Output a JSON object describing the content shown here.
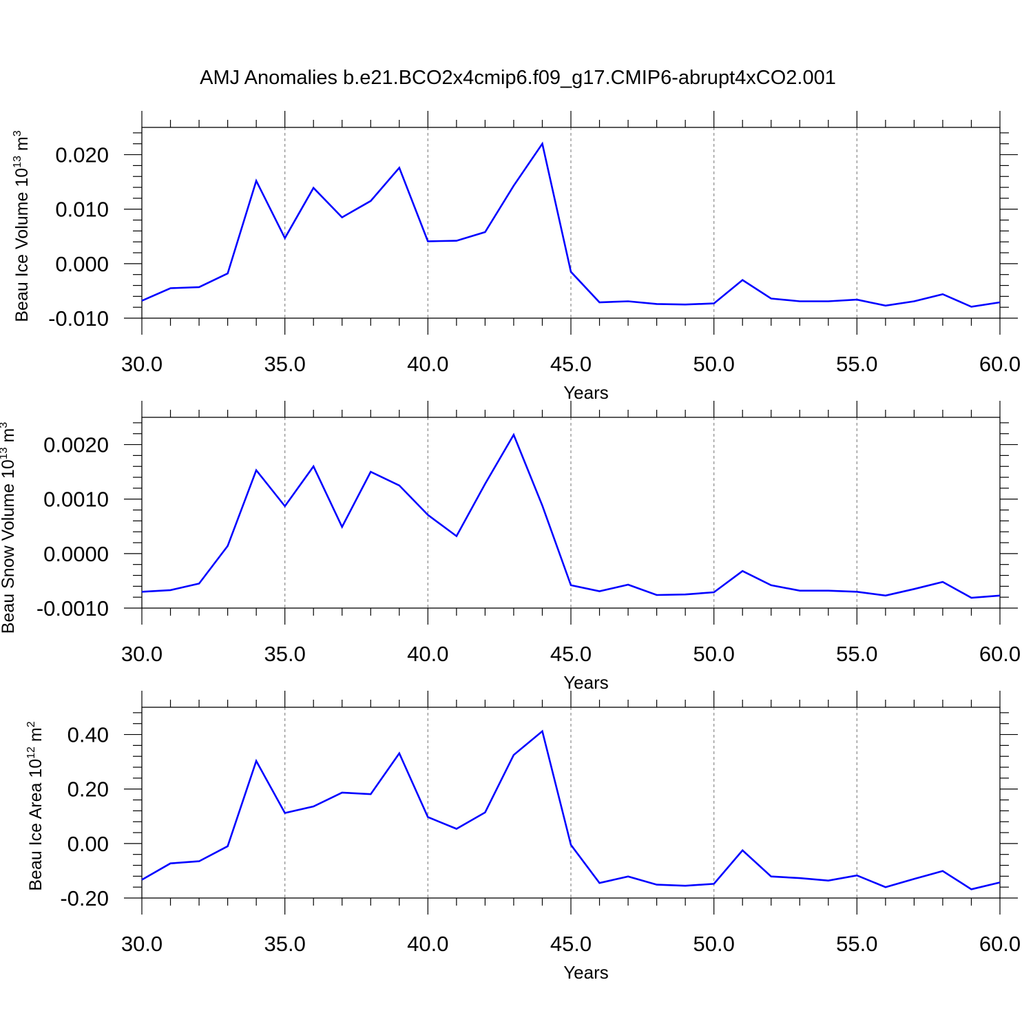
{
  "title": "AMJ Anomalies b.e21.BCO2x4cmip6.f09_g17.CMIP6-abrupt4xCO2.001",
  "colors": {
    "series": "#0000ff",
    "grid": "#888888",
    "axis": "#000000"
  },
  "chart_data": [
    {
      "type": "line",
      "ylabel_base": "Beau Ice Volume 10",
      "ylabel_exp": "13",
      "ylabel_unit": " m",
      "ylabel_unit_exp": "3",
      "xlabel": "Years",
      "xlim": [
        30,
        60
      ],
      "ylim": [
        -0.01,
        0.025
      ],
      "xticks": [
        30,
        35,
        40,
        45,
        50,
        55,
        60
      ],
      "xtick_labels": [
        "30.0",
        "35.0",
        "40.0",
        "45.0",
        "50.0",
        "55.0",
        "60.0"
      ],
      "yticks": [
        -0.01,
        0.0,
        0.01,
        0.02
      ],
      "ytick_labels": [
        "-0.010",
        "0.000",
        "0.010",
        "0.020"
      ],
      "grid": "vertical dashed at major x ticks",
      "x": [
        30,
        31,
        32,
        33,
        34,
        35,
        36,
        37,
        38,
        39,
        40,
        41,
        42,
        43,
        44,
        45,
        46,
        47,
        48,
        49,
        50,
        51,
        52,
        53,
        54,
        55,
        56,
        57,
        58,
        59,
        60
      ],
      "values": [
        -0.0068,
        -0.0045,
        -0.0043,
        -0.0018,
        0.0152,
        0.0047,
        0.0139,
        0.0085,
        0.0115,
        0.0176,
        0.0041,
        0.0042,
        0.0058,
        0.0143,
        0.022,
        -0.0015,
        -0.0071,
        -0.0069,
        -0.0074,
        -0.0075,
        -0.0073,
        -0.003,
        -0.0064,
        -0.0069,
        -0.0069,
        -0.0066,
        -0.0077,
        -0.0069,
        -0.0056,
        -0.0079,
        -0.0071
      ]
    },
    {
      "type": "line",
      "ylabel_base": "Beau Snow Volume 10",
      "ylabel_exp": "13",
      "ylabel_unit": " m",
      "ylabel_unit_exp": "3",
      "xlabel": "Years",
      "xlim": [
        30,
        60
      ],
      "ylim": [
        -0.001,
        0.0025
      ],
      "xticks": [
        30,
        35,
        40,
        45,
        50,
        55,
        60
      ],
      "xtick_labels": [
        "30.0",
        "35.0",
        "40.0",
        "45.0",
        "50.0",
        "55.0",
        "60.0"
      ],
      "yticks": [
        -0.001,
        0.0,
        0.001,
        0.002
      ],
      "ytick_labels": [
        "-0.0010",
        "0.0000",
        "0.0010",
        "0.0020"
      ],
      "grid": "vertical dashed at major x ticks",
      "x": [
        30,
        31,
        32,
        33,
        34,
        35,
        36,
        37,
        38,
        39,
        40,
        41,
        42,
        43,
        44,
        45,
        46,
        47,
        48,
        49,
        50,
        51,
        52,
        53,
        54,
        55,
        56,
        57,
        58,
        59,
        60
      ],
      "values": [
        -0.0007,
        -0.00067,
        -0.00055,
        0.00014,
        0.00153,
        0.00087,
        0.0016,
        0.00049,
        0.0015,
        0.00125,
        0.00071,
        0.00032,
        0.00128,
        0.00218,
        0.00088,
        -0.00058,
        -0.00069,
        -0.00057,
        -0.00076,
        -0.00075,
        -0.00071,
        -0.00032,
        -0.00058,
        -0.00068,
        -0.00068,
        -0.0007,
        -0.00077,
        -0.00065,
        -0.00052,
        -0.00081,
        -0.00077
      ]
    },
    {
      "type": "line",
      "ylabel_base": "Beau Ice Area 10",
      "ylabel_exp": "12",
      "ylabel_unit": " m",
      "ylabel_unit_exp": "2",
      "xlabel": "Years",
      "xlim": [
        30,
        60
      ],
      "ylim": [
        -0.2,
        0.5
      ],
      "xticks": [
        30,
        35,
        40,
        45,
        50,
        55,
        60
      ],
      "xtick_labels": [
        "30.0",
        "35.0",
        "40.0",
        "45.0",
        "50.0",
        "55.0",
        "60.0"
      ],
      "yticks": [
        -0.2,
        0.0,
        0.2,
        0.4
      ],
      "ytick_labels": [
        "-0.20",
        "0.00",
        "0.20",
        "0.40"
      ],
      "grid": "vertical dashed at major x ticks",
      "x": [
        30,
        31,
        32,
        33,
        34,
        35,
        36,
        37,
        38,
        39,
        40,
        41,
        42,
        43,
        44,
        45,
        46,
        47,
        48,
        49,
        50,
        51,
        52,
        53,
        54,
        55,
        56,
        57,
        58,
        59,
        60
      ],
      "values": [
        -0.133,
        -0.073,
        -0.065,
        -0.01,
        0.303,
        0.112,
        0.136,
        0.187,
        0.181,
        0.331,
        0.097,
        0.054,
        0.114,
        0.325,
        0.412,
        -0.005,
        -0.145,
        -0.121,
        -0.151,
        -0.155,
        -0.148,
        -0.025,
        -0.121,
        -0.127,
        -0.136,
        -0.117,
        -0.16,
        -0.13,
        -0.101,
        -0.168,
        -0.143
      ]
    }
  ]
}
